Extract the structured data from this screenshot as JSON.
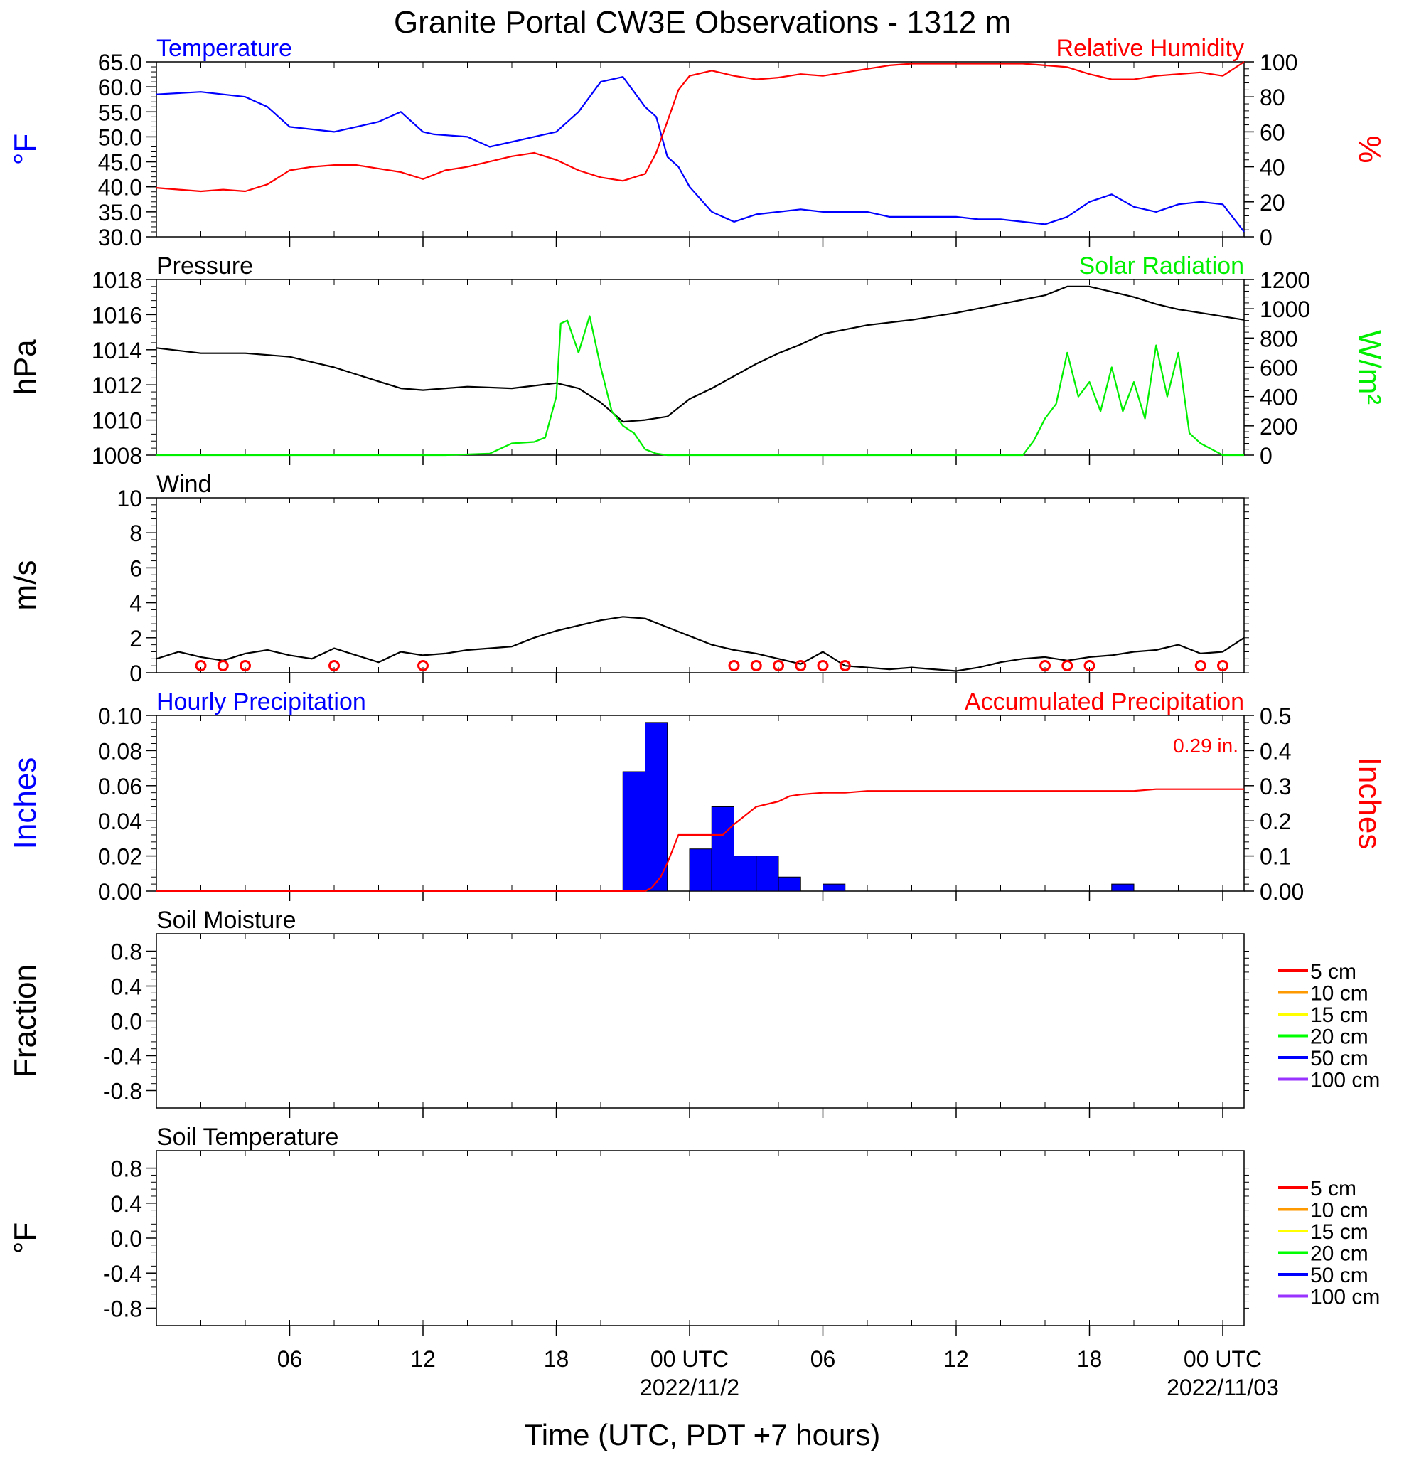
{
  "title": "Granite Portal CW3E Observations - 1312 m",
  "xlabel": "Time (UTC, PDT +7 hours)",
  "colors": {
    "temperature": "#0000ff",
    "humidity": "#ff0000",
    "pressure": "#000000",
    "solar": "#00ee00",
    "wind_barb": "#ff0000",
    "hourly_precip": "#0000ff",
    "accum_precip": "#ff0000"
  },
  "x_axis": {
    "range_hours": [
      -24,
      24
    ],
    "tick_hours": [
      -18,
      -12,
      -6,
      0,
      6,
      12,
      18,
      24
    ],
    "tick_labels": [
      "06",
      "12",
      "18",
      "00 UTC",
      "06",
      "12",
      "18",
      "00 UTC"
    ],
    "date_labels": [
      {
        "hour": 0,
        "text": "2022/11/2"
      },
      {
        "hour": 24,
        "text": "2022/11/03"
      }
    ]
  },
  "chart_data": [
    {
      "type": "line",
      "panel": "temperature-humidity",
      "left_title": "Temperature",
      "right_title": "Relative Humidity",
      "ylabel": "°F",
      "ylabel_right": "%",
      "ylim": [
        30,
        65
      ],
      "ylim_right": [
        0,
        100
      ],
      "yticks": [
        "30.0",
        "35.0",
        "40.0",
        "45.0",
        "50.0",
        "55.0",
        "60.0",
        "65.0"
      ],
      "yticks_right": [
        "0",
        "20",
        "40",
        "60",
        "80",
        "100"
      ],
      "series": [
        {
          "name": "Temperature",
          "axis": "left",
          "x": [
            -24,
            -22,
            -20,
            -19,
            -18,
            -17,
            -16,
            -15,
            -14,
            -13,
            -12,
            -11.5,
            -10,
            -9,
            -8,
            -7,
            -6,
            -5,
            -4,
            -3,
            -2,
            -1.5,
            -1,
            -0.5,
            0,
            1,
            2,
            3,
            4,
            5,
            6,
            7,
            8,
            9,
            10,
            11,
            12,
            13,
            14,
            15,
            16,
            17,
            18,
            19,
            20,
            21,
            22,
            23,
            24,
            25
          ],
          "y": [
            58.5,
            59,
            58,
            56,
            52,
            51.5,
            51,
            52,
            53,
            55,
            51,
            50.5,
            50,
            48,
            49,
            50,
            51,
            55,
            61,
            62,
            56,
            54,
            46,
            44,
            40,
            35,
            33,
            34.5,
            35,
            35.5,
            35,
            35,
            35,
            34,
            34,
            34,
            34,
            33.5,
            33.5,
            33,
            32.5,
            34,
            37,
            38.5,
            36,
            35,
            36.5,
            37,
            36.5,
            31
          ]
        },
        {
          "name": "Relative Humidity",
          "axis": "right",
          "x": [
            -24,
            -22,
            -21,
            -20,
            -19,
            -18,
            -17,
            -16,
            -15,
            -14,
            -13,
            -12,
            -11,
            -10,
            -9,
            -8,
            -7,
            -6,
            -5,
            -4,
            -3,
            -2,
            -1.5,
            -1,
            -0.5,
            0,
            1,
            2,
            3,
            4,
            5,
            6,
            7,
            8,
            9,
            10,
            11,
            12,
            13,
            14,
            15,
            16,
            17,
            18,
            19,
            20,
            21,
            22,
            23,
            24,
            25
          ],
          "y": [
            28,
            26,
            27,
            26,
            30,
            38,
            40,
            41,
            41,
            39,
            37,
            33,
            38,
            40,
            43,
            46,
            48,
            44,
            38,
            34,
            32,
            36,
            48,
            66,
            84,
            92,
            95,
            92,
            90,
            91,
            93,
            92,
            94,
            96,
            98,
            99,
            99,
            99,
            99,
            99,
            99,
            98,
            97,
            93,
            90,
            90,
            92,
            93,
            94,
            92,
            100
          ]
        }
      ]
    },
    {
      "type": "line",
      "panel": "pressure-solar",
      "left_title": "Pressure",
      "right_title": "Solar Radiation",
      "ylabel": "hPa",
      "ylabel_right": "W/m²",
      "ylim": [
        1008,
        1018
      ],
      "ylim_right": [
        0,
        1200
      ],
      "yticks": [
        "1008",
        "1010",
        "1012",
        "1014",
        "1016",
        "1018"
      ],
      "yticks_right": [
        "0",
        "200",
        "400",
        "600",
        "800",
        "1000",
        "1200"
      ],
      "series": [
        {
          "name": "Pressure",
          "axis": "left",
          "x": [
            -24,
            -22,
            -20,
            -18,
            -16,
            -14,
            -13,
            -12,
            -10,
            -8,
            -6,
            -5,
            -4,
            -3,
            -2,
            -1,
            0,
            1,
            2,
            3,
            4,
            5,
            6,
            8,
            10,
            12,
            14,
            16,
            17,
            18,
            19,
            20,
            21,
            22,
            23,
            24,
            25
          ],
          "y": [
            1014.1,
            1013.8,
            1013.8,
            1013.6,
            1013,
            1012.2,
            1011.8,
            1011.7,
            1011.9,
            1011.8,
            1012.1,
            1011.8,
            1011,
            1009.9,
            1010,
            1010.2,
            1011.2,
            1011.8,
            1012.5,
            1013.2,
            1013.8,
            1014.3,
            1014.9,
            1015.4,
            1015.7,
            1016.1,
            1016.6,
            1017.1,
            1017.6,
            1017.6,
            1017.3,
            1017,
            1016.6,
            1016.3,
            1016.1,
            1015.9,
            1015.7
          ]
        },
        {
          "name": "Solar Radiation",
          "axis": "right",
          "x": [
            -24,
            -11,
            -9,
            -8,
            -7,
            -6.5,
            -6,
            -5.8,
            -5.5,
            -5,
            -4.5,
            -4,
            -3.5,
            -3,
            -2.5,
            -2,
            -1.5,
            -1,
            0,
            1,
            2,
            13,
            14,
            15,
            15.5,
            16,
            16.5,
            17,
            17.5,
            18,
            18.5,
            19,
            19.5,
            20,
            20.5,
            21,
            21.5,
            22,
            22.5,
            23,
            24,
            25
          ],
          "y": [
            0,
            0,
            10,
            80,
            90,
            120,
            400,
            900,
            920,
            700,
            950,
            600,
            300,
            200,
            150,
            40,
            10,
            0,
            0,
            0,
            0,
            0,
            0,
            0,
            100,
            250,
            350,
            700,
            400,
            500,
            300,
            600,
            300,
            500,
            250,
            750,
            400,
            700,
            150,
            80,
            0,
            0
          ]
        }
      ]
    },
    {
      "type": "line",
      "panel": "wind",
      "left_title": "Wind",
      "ylabel": "m/s",
      "ylim": [
        0,
        10
      ],
      "yticks": [
        "0",
        "2",
        "4",
        "6",
        "8",
        "10"
      ],
      "series": [
        {
          "name": "Wind",
          "axis": "left",
          "x": [
            -24,
            -23,
            -22,
            -21,
            -20,
            -19,
            -18,
            -17,
            -16,
            -15,
            -14,
            -13,
            -12,
            -11,
            -10,
            -9,
            -8,
            -7,
            -6,
            -5,
            -4,
            -3,
            -2,
            -1,
            0,
            1,
            2,
            3,
            4,
            5,
            6,
            7,
            8,
            9,
            10,
            11,
            12,
            13,
            14,
            15,
            16,
            17,
            18,
            19,
            20,
            21,
            22,
            23,
            24,
            25
          ],
          "y": [
            0.8,
            1.2,
            0.9,
            0.7,
            1.1,
            1.3,
            1.0,
            0.8,
            1.4,
            1.0,
            0.6,
            1.2,
            1.0,
            1.1,
            1.3,
            1.4,
            1.5,
            2.0,
            2.4,
            2.7,
            3.0,
            3.2,
            3.1,
            2.6,
            2.1,
            1.6,
            1.3,
            1.1,
            0.8,
            0.5,
            1.2,
            0.4,
            0.3,
            0.2,
            0.3,
            0.2,
            0.1,
            0.3,
            0.6,
            0.8,
            0.9,
            0.7,
            0.9,
            1.0,
            1.2,
            1.3,
            1.6,
            1.1,
            1.2,
            2.0
          ]
        }
      ],
      "barb_calm_hours": [
        -22,
        -21,
        -20,
        -16,
        -12,
        2,
        3,
        4,
        5,
        6,
        7,
        16,
        17,
        18,
        23,
        24
      ]
    },
    {
      "type": "bar",
      "panel": "precipitation",
      "left_title": "Hourly Precipitation",
      "right_title": "Accumulated Precipitation",
      "annotation": "0.29 in.",
      "ylabel": "Inches",
      "ylabel_right": "Inches",
      "ylim": [
        0,
        0.1
      ],
      "ylim_right": [
        0,
        0.5
      ],
      "yticks": [
        "0.00",
        "0.02",
        "0.04",
        "0.06",
        "0.08",
        "0.10"
      ],
      "yticks_right": [
        "0.00",
        "0.1",
        "0.2",
        "0.3",
        "0.4",
        "0.5"
      ],
      "hourly_bars": {
        "hours": [
          -2,
          -1,
          1,
          2,
          3,
          4,
          5,
          7,
          20
        ],
        "values": [
          0.068,
          0.096,
          0.024,
          0.048,
          0.02,
          0.02,
          0.008,
          0.004,
          0.004
        ]
      },
      "series": [
        {
          "name": "Accumulated Precipitation",
          "axis": "right",
          "x": [
            -24,
            -2,
            -1.7,
            -1.3,
            -1,
            -0.5,
            0,
            1,
            1.5,
            2,
            3,
            4,
            4.5,
            5,
            6,
            7,
            8,
            10,
            12,
            14,
            16,
            18,
            20,
            21,
            22,
            24,
            25
          ],
          "y": [
            0,
            0,
            0.01,
            0.04,
            0.08,
            0.16,
            0.16,
            0.16,
            0.16,
            0.19,
            0.24,
            0.255,
            0.27,
            0.275,
            0.28,
            0.28,
            0.285,
            0.285,
            0.285,
            0.285,
            0.285,
            0.285,
            0.285,
            0.29,
            0.29,
            0.29,
            0.29
          ]
        }
      ]
    },
    {
      "type": "line",
      "panel": "soil-moisture",
      "left_title": "Soil Moisture",
      "ylabel": "Fraction",
      "ylim": [
        -1,
        1
      ],
      "yticks": [
        "-0.8",
        "-0.4",
        "0.0",
        "0.4",
        "0.8"
      ],
      "legend": [
        {
          "name": "5 cm",
          "color": "#ff0000"
        },
        {
          "name": "10 cm",
          "color": "#ff9900"
        },
        {
          "name": "15 cm",
          "color": "#ffff00"
        },
        {
          "name": "20 cm",
          "color": "#00ff00"
        },
        {
          "name": "50 cm",
          "color": "#0000ff"
        },
        {
          "name": "100 cm",
          "color": "#9933ff"
        }
      ],
      "series": []
    },
    {
      "type": "line",
      "panel": "soil-temperature",
      "left_title": "Soil Temperature",
      "ylabel": "°F",
      "ylim": [
        -1,
        1
      ],
      "yticks": [
        "-0.8",
        "-0.4",
        "0.0",
        "0.4",
        "0.8"
      ],
      "legend": [
        {
          "name": "5 cm",
          "color": "#ff0000"
        },
        {
          "name": "10 cm",
          "color": "#ff9900"
        },
        {
          "name": "15 cm",
          "color": "#ffff00"
        },
        {
          "name": "20 cm",
          "color": "#00ff00"
        },
        {
          "name": "50 cm",
          "color": "#0000ff"
        },
        {
          "name": "100 cm",
          "color": "#9933ff"
        }
      ],
      "series": []
    }
  ]
}
